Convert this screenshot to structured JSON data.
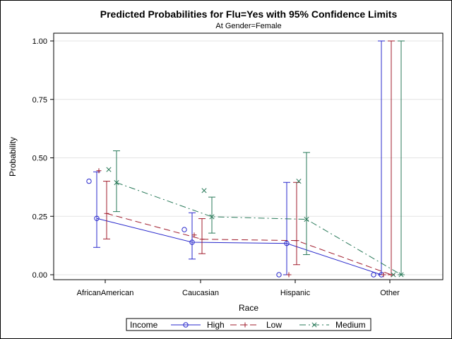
{
  "chart_data": {
    "type": "line",
    "title": "Predicted Probabilities for Flu=Yes with 95% Confidence Limits",
    "subtitle": "At Gender=Female",
    "xlabel": "Race",
    "ylabel": "Probability",
    "categories": [
      "AfricanAmerican",
      "Caucasian",
      "Hispanic",
      "Other"
    ],
    "ylim": [
      0,
      1
    ],
    "yticks": [
      "0.00",
      "0.25",
      "0.50",
      "0.75",
      "1.00"
    ],
    "ytick_values": [
      0,
      0.25,
      0.5,
      0.75,
      1.0
    ],
    "grid": true,
    "legend_title": "Income",
    "legend_position": "bottom",
    "series": [
      {
        "name": "High",
        "color": "#2a2acc",
        "marker": "circle",
        "line_style": "solid",
        "predicted": [
          0.241,
          0.139,
          0.134,
          0.0
        ],
        "lower": [
          0.117,
          0.067,
          0.0,
          0.0
        ],
        "upper": [
          0.44,
          0.265,
          0.395,
          1.0
        ],
        "observed": [
          0.4,
          0.193,
          0.0,
          0.0
        ]
      },
      {
        "name": "Low",
        "color": "#a01c2c",
        "marker": "plus",
        "line_style": "dashed",
        "predicted": [
          0.262,
          0.152,
          0.146,
          0.0
        ],
        "lower": [
          0.153,
          0.09,
          0.043,
          0.0
        ],
        "upper": [
          0.4,
          0.24,
          0.395,
          1.0
        ],
        "observed": [
          0.445,
          0.17,
          0.0,
          0.0
        ]
      },
      {
        "name": "Medium",
        "color": "#2a7a5a",
        "marker": "x",
        "line_style": "dashdot",
        "predicted": [
          0.394,
          0.248,
          0.237,
          0.0
        ],
        "lower": [
          0.27,
          0.178,
          0.086,
          0.0
        ],
        "upper": [
          0.53,
          0.332,
          0.523,
          1.0
        ],
        "observed": [
          0.45,
          0.36,
          0.4,
          0.0
        ]
      }
    ]
  }
}
